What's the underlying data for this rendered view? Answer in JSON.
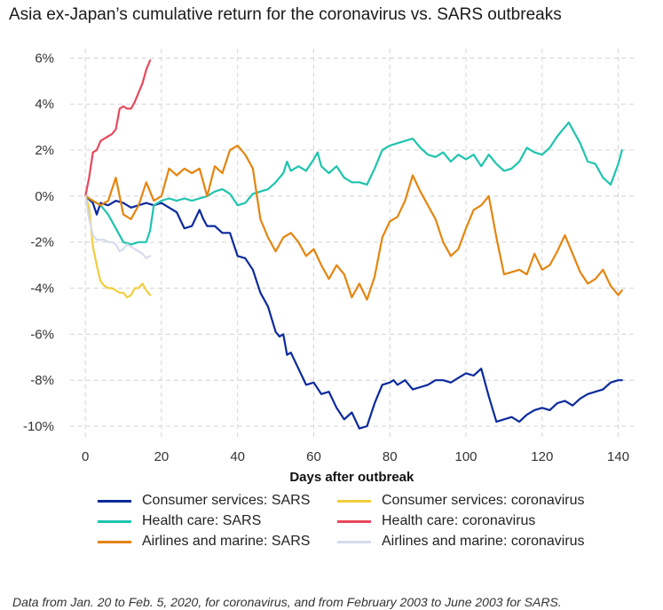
{
  "title": "Asia ex-Japan’s cumulative return for the coronavirus vs. SARS outbreaks",
  "footnote": "Data from Jan. 20 to Feb. 5, 2020, for coronavirus, and from February 2003 to June 2003 for SARS.",
  "chart_data": {
    "type": "line",
    "xlabel": "Days after outbreak",
    "ylabel": "",
    "xlim": [
      -4,
      145
    ],
    "ylim": [
      -10.5,
      6.4
    ],
    "xticks": [
      0,
      20,
      40,
      60,
      80,
      100,
      120,
      140
    ],
    "yticks": [
      -10,
      -8,
      -6,
      -4,
      -2,
      0,
      2,
      4,
      6
    ],
    "ytick_labels": [
      "-10%",
      "-8%",
      "-6%",
      "-4%",
      "-2%",
      "0%",
      "2%",
      "4%",
      "6%"
    ],
    "grid": true,
    "legend_position": "bottom",
    "series": [
      {
        "name": "Consumer services: SARS",
        "color": "#0a2a9c",
        "x": [
          0,
          2,
          3,
          4,
          6,
          8,
          10,
          12,
          14,
          16,
          18,
          20,
          22,
          24,
          26,
          28,
          30,
          31,
          32,
          34,
          36,
          38,
          40,
          42,
          44,
          46,
          48,
          50,
          51,
          52,
          53,
          54,
          56,
          58,
          60,
          62,
          64,
          66,
          68,
          70,
          72,
          74,
          76,
          78,
          80,
          81,
          82,
          84,
          86,
          88,
          90,
          92,
          94,
          96,
          98,
          100,
          102,
          104,
          106,
          108,
          110,
          112,
          114,
          116,
          118,
          120,
          122,
          124,
          126,
          128,
          130,
          132,
          134,
          136,
          138,
          140,
          141
        ],
        "y": [
          0,
          -0.3,
          -0.8,
          -0.3,
          -0.4,
          -0.2,
          -0.3,
          -0.5,
          -0.4,
          -0.3,
          -0.4,
          -0.3,
          -0.5,
          -0.7,
          -1.4,
          -1.3,
          -0.6,
          -1.0,
          -1.3,
          -1.3,
          -1.6,
          -1.6,
          -2.6,
          -2.7,
          -3.2,
          -4.2,
          -4.8,
          -5.9,
          -6.1,
          -6.0,
          -6.9,
          -6.8,
          -7.5,
          -8.2,
          -8.1,
          -8.6,
          -8.5,
          -9.2,
          -9.7,
          -9.4,
          -10.1,
          -10.0,
          -9.0,
          -8.2,
          -8.1,
          -8.0,
          -8.2,
          -8.0,
          -8.4,
          -8.3,
          -8.2,
          -8.0,
          -8.0,
          -8.1,
          -7.9,
          -7.7,
          -7.8,
          -7.5,
          -8.7,
          -9.8,
          -9.7,
          -9.6,
          -9.8,
          -9.5,
          -9.3,
          -9.2,
          -9.3,
          -9.0,
          -8.9,
          -9.1,
          -8.8,
          -8.6,
          -8.5,
          -8.4,
          -8.1,
          -8.0,
          -8.0
        ]
      },
      {
        "name": "Health care: SARS",
        "color": "#1ec4ae",
        "x": [
          0,
          2,
          4,
          6,
          8,
          10,
          12,
          14,
          16,
          17,
          18,
          20,
          22,
          24,
          26,
          28,
          30,
          32,
          34,
          36,
          38,
          40,
          42,
          44,
          46,
          48,
          50,
          52,
          53,
          54,
          56,
          58,
          60,
          61,
          62,
          64,
          66,
          68,
          70,
          72,
          74,
          76,
          78,
          80,
          82,
          84,
          86,
          88,
          90,
          92,
          94,
          96,
          98,
          100,
          102,
          104,
          106,
          108,
          110,
          112,
          114,
          116,
          118,
          120,
          122,
          124,
          126,
          127,
          128,
          130,
          132,
          134,
          136,
          138,
          140,
          141
        ],
        "y": [
          0,
          -0.2,
          -0.4,
          -0.8,
          -1.4,
          -2.0,
          -2.1,
          -2.0,
          -2.0,
          -1.5,
          -0.4,
          -0.2,
          -0.1,
          -0.2,
          -0.1,
          -0.2,
          -0.1,
          0,
          0.2,
          0.3,
          0.1,
          -0.4,
          -0.3,
          0.1,
          0.2,
          0.3,
          0.6,
          1.0,
          1.5,
          1.1,
          1.3,
          1.1,
          1.6,
          1.9,
          1.3,
          1.0,
          1.3,
          0.8,
          0.6,
          0.6,
          0.5,
          1.2,
          2.0,
          2.2,
          2.3,
          2.4,
          2.5,
          2.1,
          1.8,
          1.7,
          1.9,
          1.5,
          1.8,
          1.6,
          1.8,
          1.3,
          1.8,
          1.4,
          1.1,
          1.2,
          1.5,
          2.1,
          1.9,
          1.8,
          2.1,
          2.6,
          3.0,
          3.2,
          2.9,
          2.3,
          1.5,
          1.4,
          0.8,
          0.5,
          1.4,
          2.0
        ]
      },
      {
        "name": "Airlines and marine: SARS",
        "color": "#e5850f",
        "x": [
          0,
          2,
          4,
          6,
          8,
          10,
          12,
          14,
          16,
          18,
          20,
          22,
          24,
          26,
          28,
          30,
          32,
          34,
          36,
          38,
          40,
          42,
          44,
          46,
          48,
          50,
          52,
          54,
          56,
          58,
          60,
          62,
          64,
          66,
          68,
          70,
          72,
          74,
          76,
          78,
          80,
          82,
          84,
          86,
          88,
          90,
          92,
          94,
          96,
          98,
          100,
          102,
          104,
          106,
          108,
          110,
          112,
          114,
          116,
          118,
          120,
          122,
          124,
          126,
          128,
          130,
          132,
          134,
          136,
          138,
          140,
          141
        ],
        "y": [
          0,
          -0.2,
          -0.4,
          -0.2,
          0.8,
          -0.8,
          -1.0,
          -0.4,
          0.6,
          -0.2,
          0.0,
          1.2,
          0.9,
          1.2,
          1.0,
          1.2,
          0.0,
          1.3,
          1.0,
          2.0,
          2.2,
          1.8,
          1.2,
          -1.0,
          -1.8,
          -2.4,
          -1.8,
          -1.6,
          -2.0,
          -2.6,
          -2.3,
          -3.0,
          -3.6,
          -3.0,
          -3.4,
          -4.4,
          -3.8,
          -4.5,
          -3.5,
          -1.8,
          -1.1,
          -0.9,
          -0.2,
          0.9,
          0.2,
          -0.4,
          -1.0,
          -2.0,
          -2.6,
          -2.3,
          -1.4,
          -0.6,
          -0.4,
          0.0,
          -1.8,
          -3.4,
          -3.3,
          -3.2,
          -3.4,
          -2.5,
          -3.2,
          -3.0,
          -2.4,
          -1.7,
          -2.5,
          -3.3,
          -3.8,
          -3.6,
          -3.2,
          -3.9,
          -4.3,
          -4.1
        ]
      },
      {
        "name": "Consumer services: coronavirus",
        "color": "#f2cd3c",
        "x": [
          0,
          1,
          2,
          3,
          4,
          5,
          6,
          7,
          8,
          9,
          10,
          11,
          12,
          13,
          14,
          15,
          16,
          17
        ],
        "y": [
          0,
          -0.5,
          -2.2,
          -3.0,
          -3.7,
          -3.9,
          -4.0,
          -4.0,
          -4.1,
          -4.2,
          -4.2,
          -4.4,
          -4.3,
          -4.0,
          -4.0,
          -3.8,
          -4.1,
          -4.3
        ]
      },
      {
        "name": "Health care: coronavirus",
        "color": "#e8485d",
        "x": [
          0,
          1,
          2,
          3,
          4,
          5,
          6,
          7,
          8,
          9,
          10,
          11,
          12,
          13,
          14,
          15,
          16,
          17
        ],
        "y": [
          0,
          0.8,
          1.9,
          2.0,
          2.4,
          2.5,
          2.6,
          2.7,
          2.9,
          3.8,
          3.9,
          3.8,
          3.8,
          4.1,
          4.5,
          4.9,
          5.5,
          5.9
        ]
      },
      {
        "name": "Airlines and marine: coronavirus",
        "color": "#d6dcec",
        "x": [
          0,
          1,
          2,
          3,
          4,
          5,
          6,
          7,
          8,
          9,
          10,
          11,
          12,
          13,
          14,
          15,
          16,
          17
        ],
        "y": [
          0,
          -1.0,
          -1.7,
          -1.9,
          -1.9,
          -1.9,
          -2.0,
          -2.0,
          -2.1,
          -2.4,
          -2.3,
          -2.1,
          -2.2,
          -2.3,
          -2.4,
          -2.5,
          -2.7,
          -2.6
        ]
      }
    ]
  }
}
